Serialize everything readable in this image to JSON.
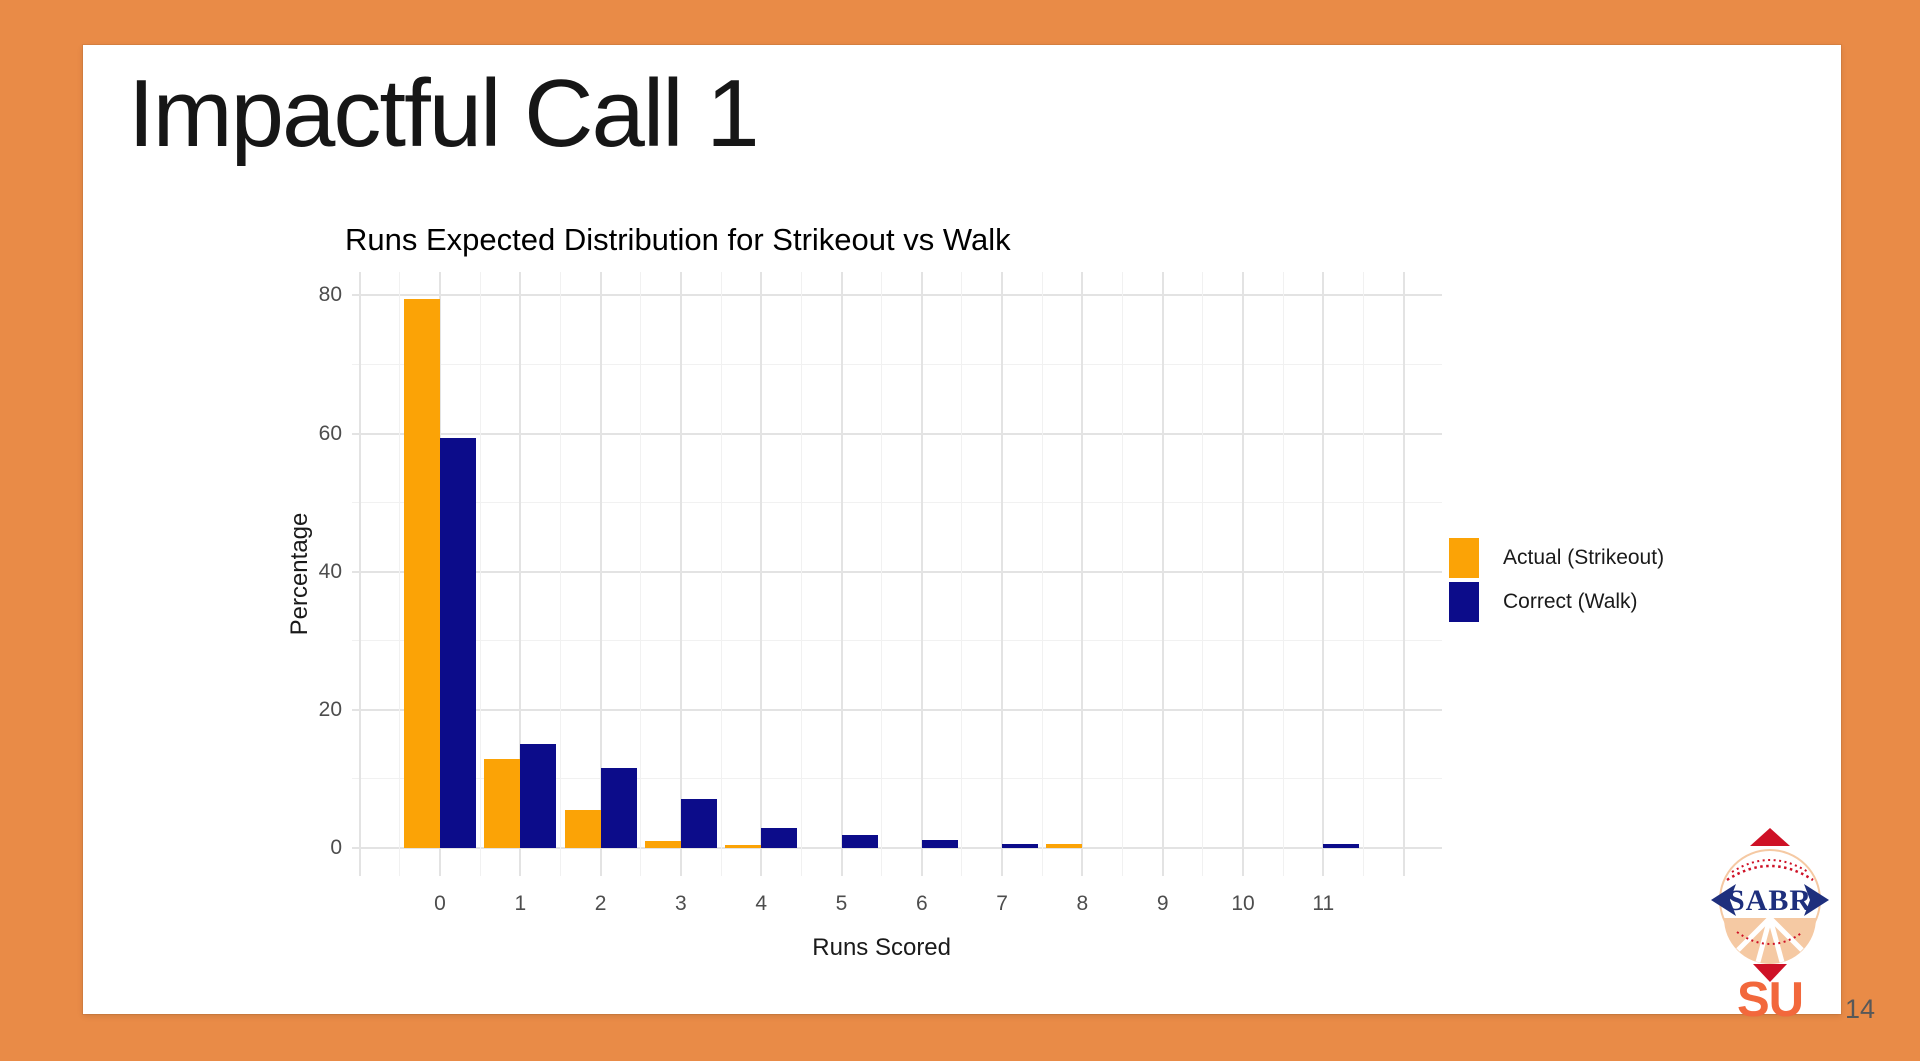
{
  "slide": {
    "title": "Impactful Call 1",
    "page_number": "14"
  },
  "logo": {
    "text_main": "SABR",
    "text_sub": "SU",
    "navy": "#1E2F7D",
    "red": "#CE1126",
    "peach": "#F5C9A3",
    "orange": "#F2683C"
  },
  "colors": {
    "border_background": "#E98B47",
    "slide_background": "#FFFFFF",
    "grid_major": "#E3E3E3",
    "grid_minor": "#F1F1F1",
    "axis_text": "#4D4D4D",
    "chart_text": "#1A1A1A",
    "bar_orange": "#FBA306",
    "bar_navy": "#0C0C8A"
  },
  "chart_data": {
    "type": "bar",
    "title": "Runs Expected Distribution for Strikeout vs Walk",
    "xlabel": "Runs Scored",
    "ylabel": "Percentage",
    "categories": [
      "0",
      "1",
      "2",
      "3",
      "4",
      "5",
      "6",
      "7",
      "8",
      "9",
      "10",
      "11"
    ],
    "series": [
      {
        "name": "Actual (Strikeout)",
        "color": "#FBA306",
        "values": [
          79.5,
          12.9,
          5.5,
          0.9,
          0.4,
          0,
          0,
          0,
          0.5,
          0,
          0,
          0
        ]
      },
      {
        "name": "Correct (Walk)",
        "color": "#0C0C8A",
        "values": [
          59.4,
          15.0,
          11.5,
          7.0,
          2.8,
          1.9,
          1.1,
          0.5,
          0,
          0,
          0,
          0.6
        ]
      }
    ],
    "y_ticks": [
      0,
      20,
      40,
      60,
      80
    ],
    "y_minor_ticks": [
      10,
      30,
      50,
      70
    ],
    "ylim": [
      0,
      80
    ],
    "grid": true,
    "legend_position": "right"
  }
}
